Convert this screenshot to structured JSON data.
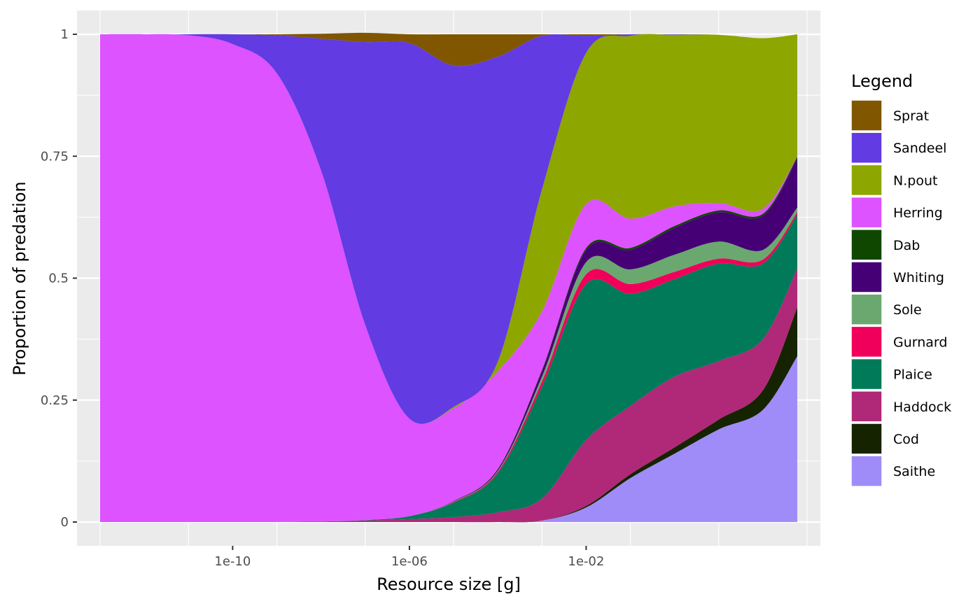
{
  "chart_data": {
    "type": "area",
    "stacked": true,
    "xscale": "log10",
    "xlabel": "Resource size [g]",
    "ylabel": "Proportion of predation",
    "xlim": [
      "3e-14",
      "2e+3"
    ],
    "ylim": [
      0,
      1
    ],
    "x_ticks": [
      "1e-10",
      "1e-06",
      "1e-02"
    ],
    "y_ticks": [
      "0",
      "0.25",
      "0.5",
      "0.75",
      "1"
    ],
    "grid": true,
    "legend": {
      "title": "Legend",
      "placement": "right"
    },
    "x": [
      "1e-13",
      "1e-12",
      "1e-11",
      "1e-10",
      "1e-9",
      "1e-8",
      "1e-7",
      "1e-6",
      "1e-5",
      "1e-4",
      "1e-3",
      "1e-2",
      "1e-1",
      "1e+0",
      "1e+1",
      "1e+2",
      "6e+2"
    ],
    "series": [
      {
        "name": "Saithe",
        "color": "#a08cf8",
        "values": [
          0,
          0,
          0,
          0,
          0,
          0,
          0,
          0,
          0,
          0,
          0.003,
          0.03,
          0.09,
          0.14,
          0.19,
          0.23,
          0.34
        ]
      },
      {
        "name": "Cod",
        "color": "#162300",
        "values": [
          0,
          0,
          0,
          0,
          0,
          0,
          0,
          0,
          0,
          0,
          0,
          0.003,
          0.008,
          0.013,
          0.02,
          0.04,
          0.1
        ]
      },
      {
        "name": "Haddock",
        "color": "#b02878",
        "values": [
          0,
          0,
          0,
          0,
          0,
          0.001,
          0.003,
          0.006,
          0.01,
          0.02,
          0.045,
          0.135,
          0.14,
          0.145,
          0.12,
          0.105,
          0.08
        ]
      },
      {
        "name": "Plaice",
        "color": "#007a58",
        "values": [
          0,
          0,
          0,
          0,
          0,
          0,
          0.001,
          0.006,
          0.03,
          0.08,
          0.23,
          0.32,
          0.23,
          0.2,
          0.2,
          0.155,
          0.11
        ]
      },
      {
        "name": "Gurnard",
        "color": "#f0005a",
        "values": [
          0,
          0,
          0,
          0,
          0,
          0,
          0,
          0,
          0.001,
          0.003,
          0.01,
          0.02,
          0.02,
          0.015,
          0.01,
          0.008,
          0.005
        ]
      },
      {
        "name": "Sole",
        "color": "#6aa86f",
        "values": [
          0,
          0,
          0,
          0,
          0,
          0,
          0,
          0,
          0.001,
          0.002,
          0.01,
          0.025,
          0.03,
          0.035,
          0.035,
          0.02,
          0.01
        ]
      },
      {
        "name": "Whiting",
        "color": "#460075",
        "values": [
          0,
          0,
          0,
          0,
          0,
          0,
          0,
          0,
          0.001,
          0.003,
          0.012,
          0.025,
          0.04,
          0.055,
          0.06,
          0.07,
          0.1
        ]
      },
      {
        "name": "Dab",
        "color": "#0f4600",
        "values": [
          0,
          0,
          0,
          0,
          0,
          0,
          0,
          0,
          0,
          0.001,
          0.002,
          0.004,
          0.004,
          0.004,
          0.004,
          0.004,
          0.004
        ]
      },
      {
        "name": "Herring",
        "color": "#dd53ff",
        "values": [
          1,
          1,
          0.998,
          0.98,
          0.92,
          0.72,
          0.4,
          0.2,
          0.19,
          0.2,
          0.12,
          0.09,
          0.06,
          0.04,
          0.015,
          0.01,
          0.001
        ]
      },
      {
        "name": "N.pout",
        "color": "#8da600",
        "values": [
          0,
          0,
          0,
          0,
          0,
          0,
          0,
          0,
          0.003,
          0.02,
          0.25,
          0.31,
          0.375,
          0.352,
          0.345,
          0.35,
          0.25
        ]
      },
      {
        "name": "Sandeel",
        "color": "#623be2",
        "values": [
          0,
          0,
          0.002,
          0.02,
          0.078,
          0.27,
          0.58,
          0.77,
          0.7,
          0.625,
          0.315,
          0.035,
          0.003,
          0.001,
          0,
          0,
          0
        ]
      },
      {
        "name": "Sprat",
        "color": "#805600",
        "values": [
          0,
          0,
          0,
          0,
          0.002,
          0.01,
          0.019,
          0.018,
          0.064,
          0.046,
          0.003,
          0.003,
          0,
          0,
          0,
          0,
          0
        ]
      }
    ],
    "legend_order": [
      "Sprat",
      "Sandeel",
      "N.pout",
      "Herring",
      "Dab",
      "Whiting",
      "Sole",
      "Gurnard",
      "Plaice",
      "Haddock",
      "Cod",
      "Saithe"
    ]
  }
}
